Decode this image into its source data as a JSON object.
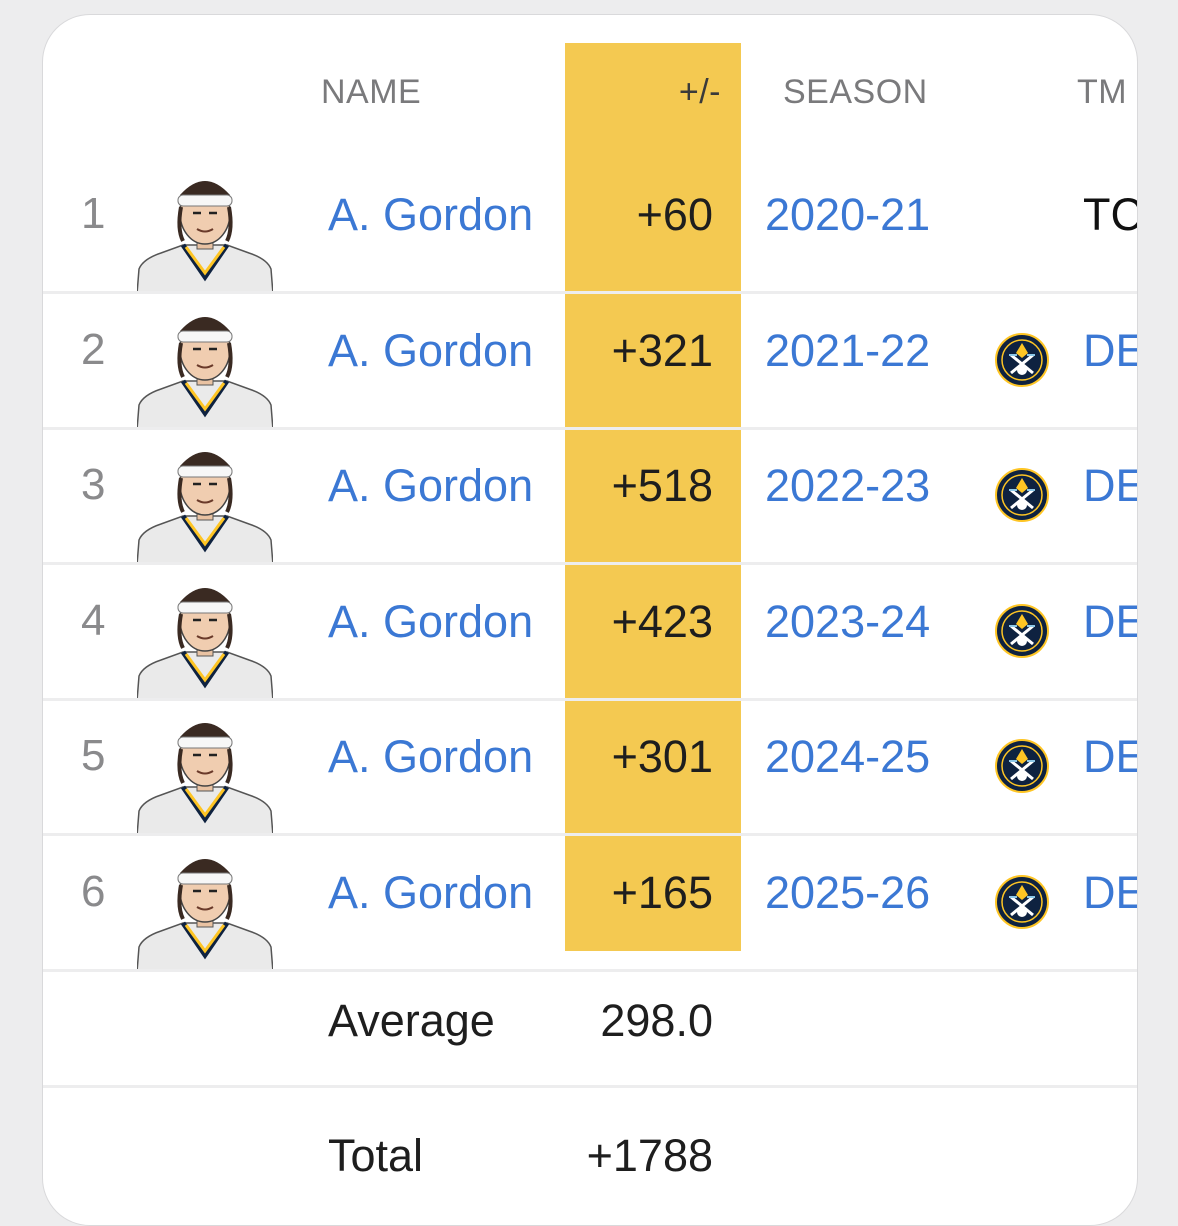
{
  "header": {
    "name_label": "NAME",
    "plusminus_label": "+/-",
    "season_label": "SEASON",
    "team_label": "TM"
  },
  "rows": [
    {
      "rank": "1",
      "name": "A. Gordon",
      "plusminus": "+60",
      "season": "2020-21",
      "team": "TC",
      "has_logo": false
    },
    {
      "rank": "2",
      "name": "A. Gordon",
      "plusminus": "+321",
      "season": "2021-22",
      "team": "DE",
      "has_logo": true
    },
    {
      "rank": "3",
      "name": "A. Gordon",
      "plusminus": "+518",
      "season": "2022-23",
      "team": "DE",
      "has_logo": true
    },
    {
      "rank": "4",
      "name": "A. Gordon",
      "plusminus": "+423",
      "season": "2023-24",
      "team": "DE",
      "has_logo": true
    },
    {
      "rank": "5",
      "name": "A. Gordon",
      "plusminus": "+301",
      "season": "2024-25",
      "team": "DE",
      "has_logo": true
    },
    {
      "rank": "6",
      "name": "A. Gordon",
      "plusminus": "+165",
      "season": "2025-26",
      "team": "DE",
      "has_logo": true
    }
  ],
  "summary": {
    "average_label": "Average",
    "average_value": "298.0",
    "total_label": "Total",
    "total_value": "+1788"
  },
  "icons": {
    "player_avatar": "player-headshot-icon",
    "team_logo": "nuggets-logo-icon"
  },
  "colors": {
    "highlight": "#f4c951",
    "link": "#3b78d4",
    "logo_navy": "#0e2240",
    "logo_gold": "#fec524"
  }
}
